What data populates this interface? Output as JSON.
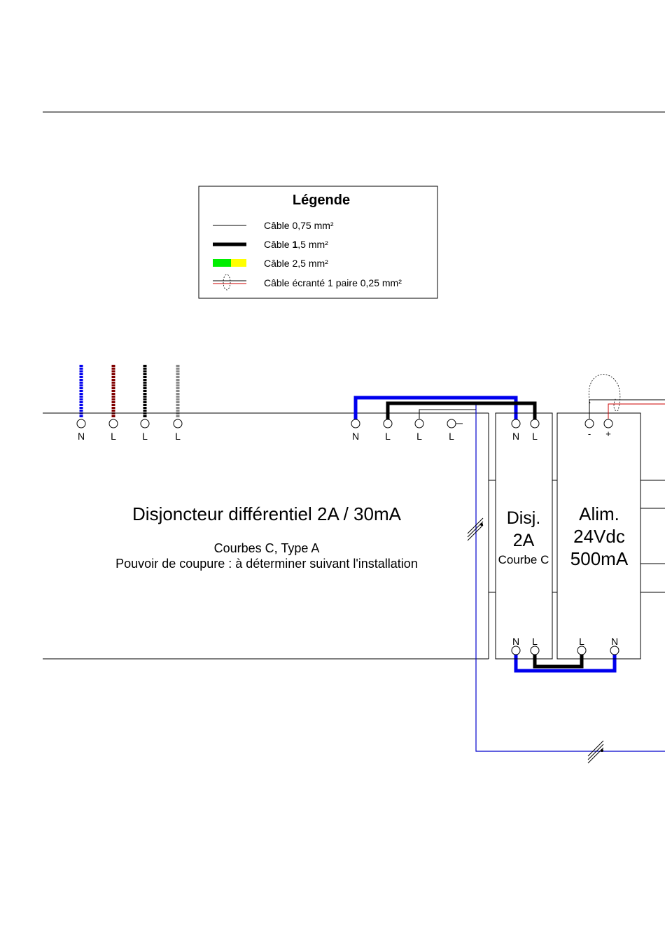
{
  "legend": {
    "title": "Légende",
    "items": [
      {
        "label": "Câble 0,75 mm²"
      },
      {
        "label_pre": "Câble ",
        "label_bold": "1",
        "label_post": ",5 mm²"
      },
      {
        "label": "Câble 2,5 mm²"
      },
      {
        "label": "Câble écranté 1 paire 0,25 mm²"
      }
    ]
  },
  "input_terminals": [
    "N",
    "L",
    "L",
    "L"
  ],
  "main_breaker": {
    "terminals": [
      "N",
      "L",
      "L",
      "L"
    ],
    "title": "Disjoncteur différentiel 2A / 30mA",
    "line1": "Courbes C, Type A",
    "line2": "Pouvoir de coupure : à déterminer suivant l'installation"
  },
  "breaker_2a": {
    "top_terminals": [
      "N",
      "L"
    ],
    "bottom_terminals": [
      "N",
      "L"
    ],
    "line1": "Disj.",
    "line2": "2A",
    "line3": "Courbe C"
  },
  "power_supply": {
    "top_terminals": [
      "-",
      "+"
    ],
    "bottom_terminals": [
      "L",
      "N"
    ],
    "line1": "Alim.",
    "line2": "24Vdc",
    "line3": "500mA"
  },
  "colors": {
    "neutral": "#0000ee",
    "line_brown": "#800000",
    "line_black": "#000000",
    "line_grey": "#888888",
    "earth_green": "#00ee00",
    "earth_yellow": "#ffff00",
    "shield_red": "#cc0000",
    "thin_blue": "#0000cc"
  }
}
